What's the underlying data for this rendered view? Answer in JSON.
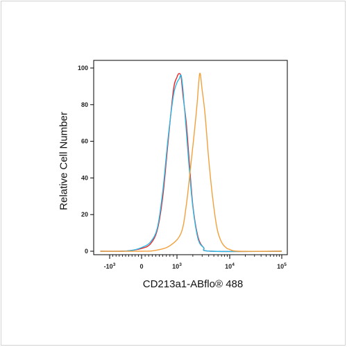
{
  "chart_data": {
    "type": "line",
    "xlabel": "CD213a1-ABflo® 488",
    "ylabel": "Relative Cell Number",
    "x_scale": "biexponential",
    "x_ticks": [
      {
        "label": "-10",
        "exp": "3",
        "value": -1000
      },
      {
        "label": "0",
        "exp": "",
        "value": 0
      },
      {
        "label": "10",
        "exp": "3",
        "value": 1000
      },
      {
        "label": "10",
        "exp": "4",
        "value": 10000
      },
      {
        "label": "10",
        "exp": "5",
        "value": 100000
      }
    ],
    "y_ticks": [
      0,
      20,
      40,
      60,
      80,
      100
    ],
    "ylim": [
      0,
      100
    ],
    "grid": false,
    "series": [
      {
        "color": "#e8262a",
        "points": [
          [
            -1500,
            0
          ],
          [
            -600,
            0
          ],
          [
            -300,
            0.5
          ],
          [
            0,
            1.5
          ],
          [
            250,
            4
          ],
          [
            450,
            12
          ],
          [
            600,
            30
          ],
          [
            750,
            60
          ],
          [
            900,
            88
          ],
          [
            1000,
            95
          ],
          [
            1100,
            97
          ],
          [
            1200,
            95
          ],
          [
            1300,
            85
          ],
          [
            1500,
            70
          ],
          [
            1700,
            50
          ],
          [
            2000,
            25
          ],
          [
            2500,
            8
          ],
          [
            3200,
            2
          ],
          [
            4500,
            0
          ],
          [
            100000,
            0
          ]
        ]
      },
      {
        "color": "#2ab7e6",
        "points": [
          [
            -1500,
            0
          ],
          [
            -600,
            0
          ],
          [
            -300,
            0.5
          ],
          [
            0,
            2
          ],
          [
            250,
            5
          ],
          [
            450,
            13
          ],
          [
            600,
            33
          ],
          [
            750,
            62
          ],
          [
            900,
            85
          ],
          [
            1000,
            92
          ],
          [
            1100,
            94
          ],
          [
            1200,
            96
          ],
          [
            1300,
            88
          ],
          [
            1500,
            66
          ],
          [
            1700,
            46
          ],
          [
            2000,
            24
          ],
          [
            2500,
            7
          ],
          [
            3200,
            2
          ],
          [
            4500,
            0
          ],
          [
            100000,
            0
          ]
        ]
      },
      {
        "color": "#f2a03c",
        "points": [
          [
            -1500,
            0
          ],
          [
            0,
            0
          ],
          [
            400,
            0.5
          ],
          [
            800,
            3
          ],
          [
            1200,
            10
          ],
          [
            1500,
            25
          ],
          [
            1800,
            45
          ],
          [
            2100,
            63
          ],
          [
            2400,
            80
          ],
          [
            2700,
            97
          ],
          [
            3000,
            88
          ],
          [
            3400,
            75
          ],
          [
            4000,
            50
          ],
          [
            4800,
            28
          ],
          [
            5800,
            12
          ],
          [
            7000,
            5
          ],
          [
            8500,
            2
          ],
          [
            10000,
            1
          ],
          [
            15000,
            0
          ],
          [
            100000,
            0
          ]
        ]
      }
    ]
  }
}
